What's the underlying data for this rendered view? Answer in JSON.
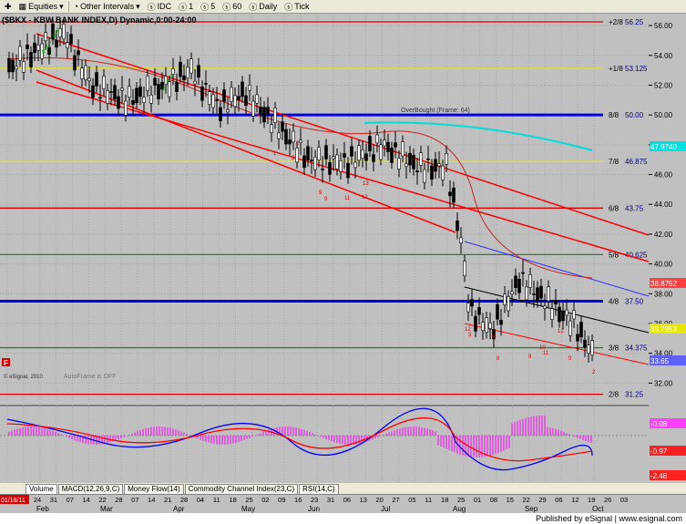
{
  "toolbar": {
    "symbol_menu": "Equities",
    "interval_menu": "Other Intervals",
    "feed": "IDC",
    "intervals": [
      "1",
      "5",
      "60",
      "Daily",
      "Tick"
    ]
  },
  "chart": {
    "title": "($BKX - KBW BANK INDEX,D) Dynamic,0:00-24:00",
    "overbought_label": "OverBought (Frame: 64)",
    "copyright": "© eSignal, 2010",
    "autoframe_label": "AutoFrame is OFF",
    "indicator_badge": "F"
  },
  "murrey_lines": [
    {
      "label": "+2/8",
      "value": "56.25",
      "color": "#dd0000"
    },
    {
      "label": "+1/8",
      "value": "53.125",
      "color": "#e6e600"
    },
    {
      "label": "8/8",
      "value": "50.00",
      "color": "#0000ee"
    },
    {
      "label": "7/8",
      "value": "46.875",
      "color": "#e6e600"
    },
    {
      "label": "6/8",
      "value": "43.75",
      "color": "#dd0000"
    },
    {
      "label": "5/8",
      "value": "40.625",
      "color": "#2e7d32"
    },
    {
      "label": "4/8",
      "value": "37.50",
      "color": "#0000ee"
    },
    {
      "label": "3/8",
      "value": "34.375",
      "color": "#2e7d32"
    },
    {
      "label": "2/8",
      "value": "31.25",
      "color": "#dd0000"
    }
  ],
  "price_axis": [
    "56.00",
    "54.00",
    "52.00",
    "50.00",
    "48.00",
    "46.00",
    "44.00",
    "42.00",
    "40.00",
    "38.00",
    "36.00",
    "34.00",
    "32.00"
  ],
  "price_tags": [
    {
      "text": "47.9740",
      "color": "#00e0e0"
    },
    {
      "text": "38.8752",
      "color": "#ff4040"
    },
    {
      "text": "35.7953",
      "color": "#e6e600"
    },
    {
      "text": "33.65",
      "color": "#6060ff"
    }
  ],
  "macd_tags": [
    {
      "text": "-0.08",
      "color": "#ff40ff"
    },
    {
      "text": "-0.97",
      "color": "#ff2020"
    },
    {
      "text": "-2.48",
      "color": "#ff2020"
    }
  ],
  "tabs": [
    "Volume",
    "MACD(12,26,9,C)",
    "Money Flow(14)",
    "Commodity Channel Index(23,C)",
    "RSI(14,C)"
  ],
  "date_axis": {
    "corner": "01/18/11",
    "days": [
      "24",
      "31",
      "07",
      "14",
      "22",
      "28",
      "07",
      "14",
      "21",
      "28",
      "04",
      "11",
      "18",
      "25",
      "02",
      "09",
      "16",
      "23",
      "31",
      "06",
      "13",
      "20",
      "27",
      "05",
      "11",
      "18",
      "25",
      "01",
      "08",
      "15",
      "22",
      "29",
      "06",
      "12",
      "19",
      "26",
      "03"
    ],
    "months": [
      "Feb",
      "Mar",
      "Apr",
      "May",
      "Jun",
      "Jul",
      "Aug",
      "Sep",
      "Oct"
    ]
  },
  "seq_labels": [
    "9",
    "8",
    "7",
    "6",
    "5",
    "4",
    "3",
    "2",
    "1",
    "3",
    "2",
    "9",
    "9",
    "11",
    "12",
    "13",
    "12",
    "3",
    "4",
    "8",
    "9",
    "10",
    "11",
    "12",
    "9",
    "2"
  ],
  "footer": "Published by eSignal | www.esignal.com",
  "colors": {
    "grid": "#a8a8a8",
    "bg": "#c0c0c0",
    "up": "#000000",
    "channel": "#ff0000",
    "macd": "#0000ff",
    "signal": "#ff0000",
    "hist": "#ff00ff"
  }
}
